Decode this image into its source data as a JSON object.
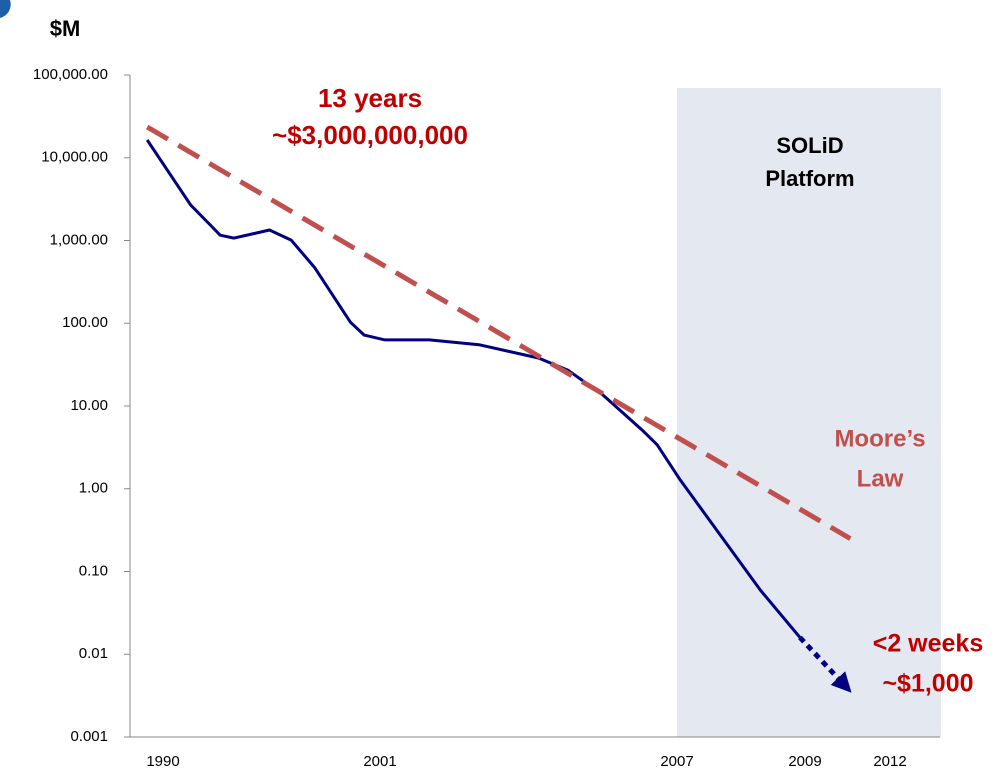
{
  "chart_data": {
    "type": "line",
    "y_label": "$M",
    "log_scale_y": true,
    "ylim": [
      0.001,
      100000
    ],
    "yticks": [
      {
        "value": 100000,
        "label": "100,000.00"
      },
      {
        "value": 10000,
        "label": "10,000.00"
      },
      {
        "value": 1000,
        "label": "1,000.00"
      },
      {
        "value": 100,
        "label": "100.00"
      },
      {
        "value": 10,
        "label": "10.00"
      },
      {
        "value": 1,
        "label": "1.00"
      },
      {
        "value": 0.1,
        "label": "0.10"
      },
      0.01,
      0.001
    ],
    "xticks": [
      1990,
      2001,
      2007,
      2009,
      2012
    ],
    "shaded_span": {
      "x": [
        2007,
        2013.8
      ],
      "color": "#e4e8f0",
      "label": [
        "SOLiD",
        "Platform"
      ]
    },
    "series": [
      {
        "name": "Sequencing cost",
        "color": "#000080",
        "style": "solid",
        "x": [
          1989.2,
          1991.4,
          1992.4,
          1992.9,
          1993.6,
          1995.4,
          1996.5,
          1997.7,
          1999.5,
          2000.2,
          2001.1,
          2002.0,
          2003.0,
          2004.2,
          2004.8,
          2005.5,
          2006.3,
          2006.6,
          2007.05,
          2007.67,
          2008.3,
          2008.92
        ],
        "values": [
          16400,
          2690,
          1540,
          1160,
          1070,
          1340,
          1010,
          466,
          103,
          72,
          63,
          63,
          55,
          38,
          27,
          13.6,
          5.1,
          3.4,
          1.28,
          0.28,
          0.06,
          0.016
        ]
      },
      {
        "name": "Projection",
        "color": "#000080",
        "style": "dotted-arrow",
        "x": [
          2008.92,
          2010.4
        ],
        "values": [
          0.016,
          0.0042
        ]
      },
      {
        "name": "Moore's Law trend",
        "color": "#c0504d",
        "style": "dashed",
        "x": [
          1989.2,
          2010.6
        ],
        "values": [
          23500,
          0.25
        ]
      }
    ],
    "annotations": [
      {
        "lines": [
          "13 years",
          "~$3,000,000,000"
        ],
        "color": "#c00000"
      },
      {
        "lines": [
          "Moore’s",
          "Law"
        ],
        "color": "#c0504d"
      },
      {
        "lines": [
          "<2 weeks",
          "~$1,000"
        ],
        "color": "#c00000"
      }
    ]
  }
}
